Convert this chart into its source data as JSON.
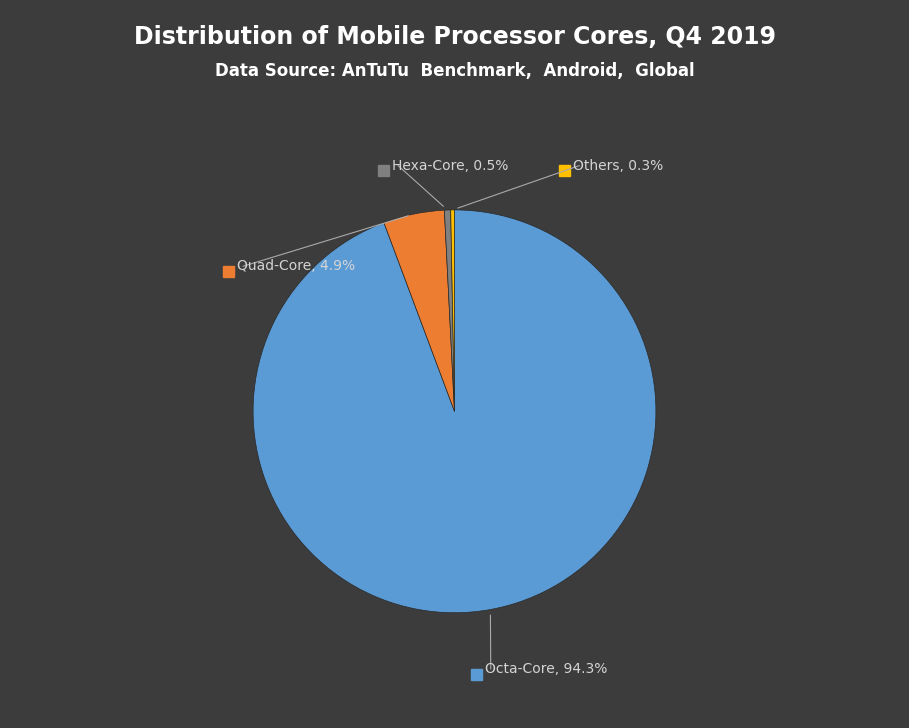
{
  "title": "Distribution of Mobile Processor Cores, Q4 2019",
  "subtitle": "Data Source: AnTuTu  Benchmark,  Android,  Global",
  "labels": [
    "Octa-Core",
    "Quad-Core",
    "Hexa-Core",
    "Others"
  ],
  "values": [
    94.3,
    4.9,
    0.5,
    0.3
  ],
  "colors": [
    "#5b9bd5",
    "#ed7d31",
    "#808080",
    "#ffc000"
  ],
  "label_texts": [
    "Octa-Core, 94.3%",
    "Quad-Core, 4.9%",
    "Hexa-Core, 0.5%",
    "Others, 0.3%"
  ],
  "background_color": "#3c3c3c",
  "title_color": "#ffffff",
  "label_color": "#d4d4d4",
  "title_fontsize": 17,
  "subtitle_fontsize": 12,
  "label_fontsize": 10
}
